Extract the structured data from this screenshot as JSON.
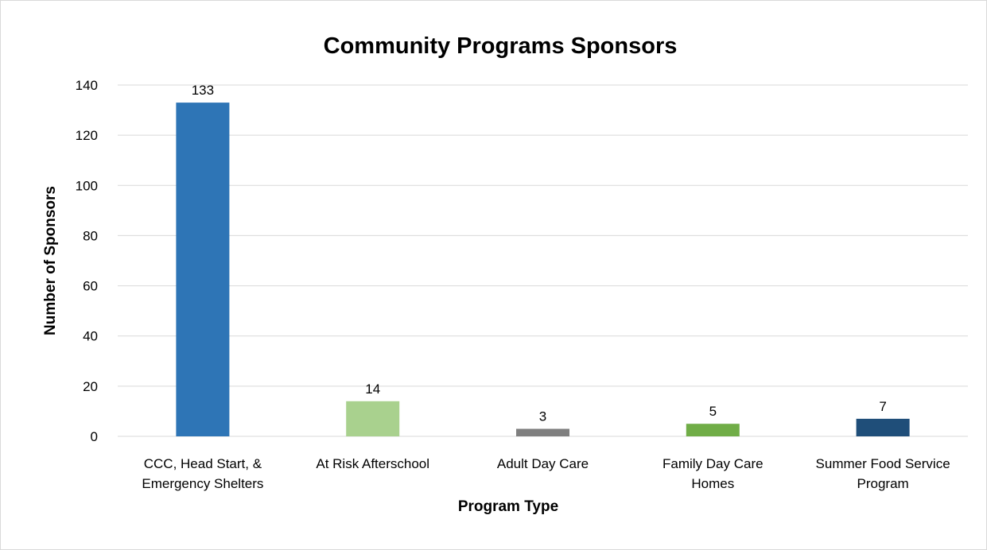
{
  "chart_data": {
    "type": "bar",
    "title": "Community Programs Sponsors",
    "xlabel": "Program Type",
    "ylabel": "Number of Sponsors",
    "ylim": [
      0,
      140
    ],
    "yticks": [
      0,
      20,
      40,
      60,
      80,
      100,
      120,
      140
    ],
    "grid": true,
    "legend": "none",
    "categories": [
      [
        "CCC, Head Start, &",
        "Emergency Shelters"
      ],
      [
        "At Risk Afterschool"
      ],
      [
        "Adult Day Care"
      ],
      [
        "Family Day Care",
        "Homes"
      ],
      [
        "Summer Food Service",
        "Program"
      ]
    ],
    "values": [
      133,
      14,
      3,
      5,
      7
    ],
    "colors": [
      "#2E75B6",
      "#A9D18E",
      "#7F7F7F",
      "#70AD47",
      "#1F4E79"
    ],
    "data_labels": true
  }
}
